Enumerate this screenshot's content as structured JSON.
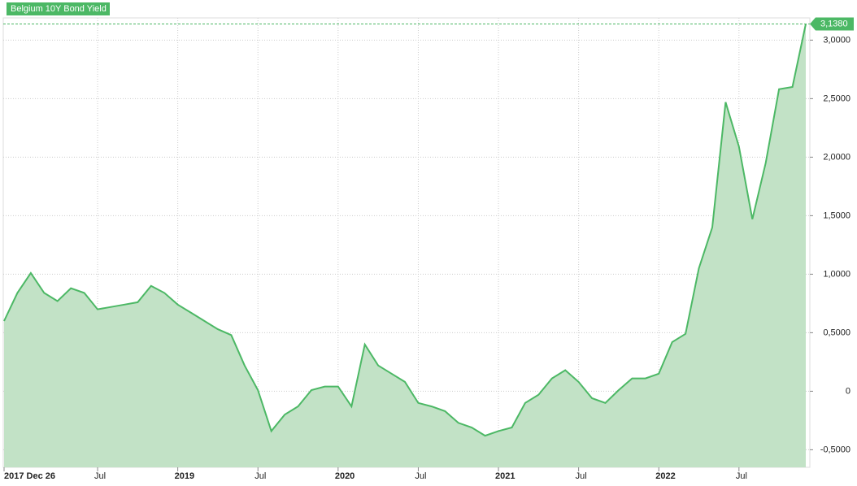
{
  "chart_data": {
    "type": "area",
    "legend": "Belgium 10Y Bond Yield",
    "categories": [
      "2017-12",
      "2018-01",
      "2018-02",
      "2018-03",
      "2018-04",
      "2018-05",
      "2018-06",
      "2018-07",
      "2018-08",
      "2018-09",
      "2018-10",
      "2018-11",
      "2018-12",
      "2019-01",
      "2019-02",
      "2019-03",
      "2019-04",
      "2019-05",
      "2019-06",
      "2019-07",
      "2019-08",
      "2019-09",
      "2019-10",
      "2019-11",
      "2019-12",
      "2020-01",
      "2020-02",
      "2020-03",
      "2020-04",
      "2020-05",
      "2020-06",
      "2020-07",
      "2020-08",
      "2020-09",
      "2020-10",
      "2020-11",
      "2020-12",
      "2021-01",
      "2021-02",
      "2021-03",
      "2021-04",
      "2021-05",
      "2021-06",
      "2021-07",
      "2021-08",
      "2021-09",
      "2021-10",
      "2021-11",
      "2021-12",
      "2022-01",
      "2022-02",
      "2022-03",
      "2022-04",
      "2022-05",
      "2022-06",
      "2022-07",
      "2022-08",
      "2022-09",
      "2022-10",
      "2022-11",
      "2022-12"
    ],
    "series": [
      {
        "name": "Belgium 10Y Bond Yield",
        "color": "#4cb865",
        "fill": "#c2e2c6",
        "values": [
          0.6,
          0.84,
          1.01,
          0.84,
          0.77,
          0.88,
          0.84,
          0.7,
          0.72,
          0.74,
          0.76,
          0.9,
          0.84,
          0.74,
          0.67,
          0.6,
          0.53,
          0.48,
          0.22,
          0.01,
          -0.34,
          -0.2,
          -0.13,
          0.01,
          0.04,
          0.04,
          -0.13,
          0.4,
          0.22,
          0.15,
          0.08,
          -0.1,
          -0.13,
          -0.17,
          -0.27,
          -0.31,
          -0.38,
          -0.34,
          -0.31,
          -0.1,
          -0.03,
          0.11,
          0.18,
          0.08,
          -0.06,
          -0.1,
          0.01,
          0.11,
          0.11,
          0.15,
          0.42,
          0.49,
          1.05,
          1.4,
          2.47,
          2.09,
          1.47,
          1.95,
          2.58,
          2.6,
          3.138
        ],
        "value_labels": [
          null,
          null,
          null,
          null,
          null,
          null,
          null,
          null,
          null,
          null,
          null,
          null,
          null,
          null,
          null,
          null,
          null,
          null,
          null,
          null,
          null,
          null,
          null,
          null,
          null,
          null,
          null,
          null,
          null,
          null,
          null,
          null,
          null,
          null,
          null,
          null,
          null,
          null,
          null,
          null,
          null,
          null,
          null,
          null,
          null,
          null,
          null,
          null,
          null,
          null,
          null,
          null,
          null,
          null,
          null,
          null,
          null,
          null,
          null,
          null,
          "3,1380"
        ]
      }
    ],
    "ylim": [
      -0.65,
      3.19
    ],
    "yticks": [
      {
        "value": -0.5,
        "label": "-0,5000"
      },
      0,
      {
        "value": 0.5,
        "label": "0,5000"
      },
      {
        "value": 1,
        "label": "1,0000"
      },
      {
        "value": 1.5,
        "label": "1,5000"
      },
      {
        "value": 2,
        "label": "2,0000"
      },
      {
        "value": 2.5,
        "label": "2,5000"
      },
      {
        "value": 3,
        "label": "3,0000"
      }
    ],
    "xticks": [
      {
        "value": 0,
        "label": "2017 Dec 26"
      },
      {
        "value": 7,
        "label": "Jul"
      },
      {
        "value": 13,
        "label": "2019"
      },
      {
        "value": 19,
        "label": "Jul"
      },
      {
        "value": 25,
        "label": "2020"
      },
      {
        "value": 31,
        "label": "Jul"
      },
      {
        "value": 37,
        "label": "2021"
      },
      {
        "value": 43,
        "label": "Jul"
      },
      {
        "value": 49,
        "label": "2022"
      },
      {
        "value": 55,
        "label": "Jul"
      }
    ],
    "grid": true
  }
}
